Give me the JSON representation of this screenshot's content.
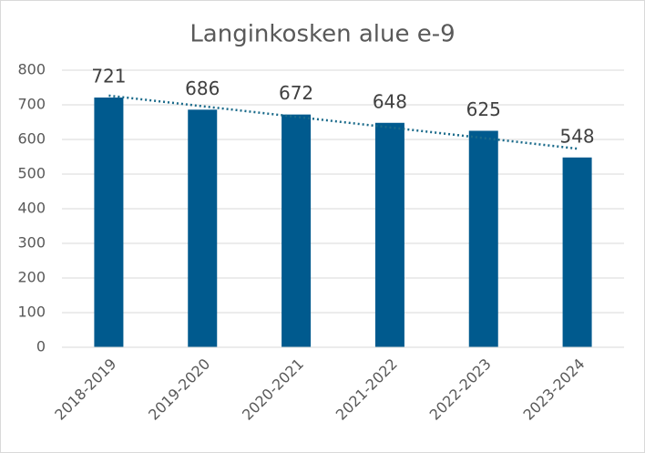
{
  "chart_data": {
    "type": "bar",
    "title": "Langinkosken alue e-9",
    "categories": [
      "2018-2019",
      "2019-2020",
      "2020-2021",
      "2021-2022",
      "2022-2023",
      "2023-2024"
    ],
    "values": [
      721,
      686,
      672,
      648,
      625,
      548
    ],
    "color": "#005a8e",
    "ylim": [
      0,
      800
    ],
    "yticks": [
      0,
      100,
      200,
      300,
      400,
      500,
      600,
      700,
      800
    ],
    "grid": true,
    "data_labels": true,
    "trendline": "linear",
    "trendline_color": "#1a6a8a"
  }
}
